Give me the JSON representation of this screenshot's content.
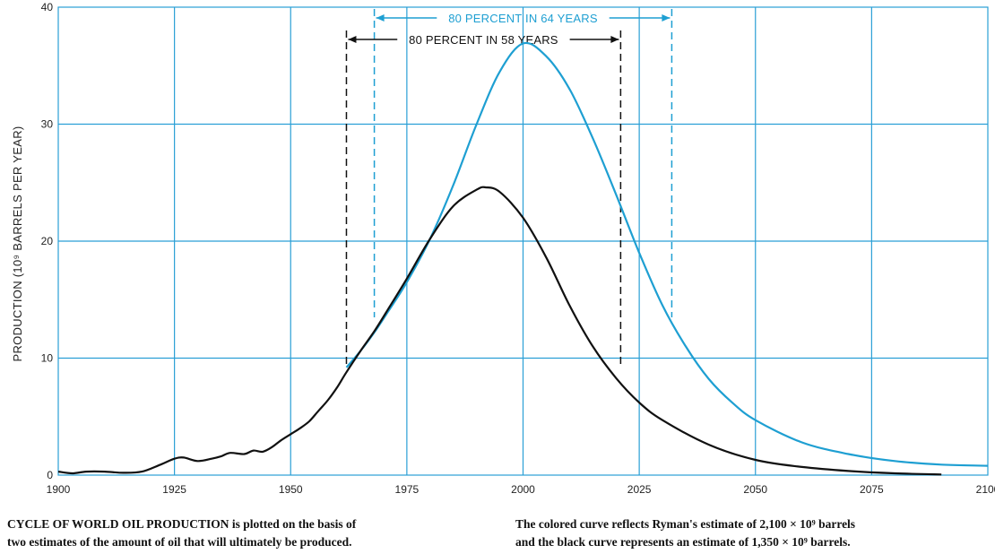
{
  "chart_data": {
    "type": "line",
    "title": "",
    "xlabel": "",
    "ylabel": "PRODUCTION (10⁹ BARRELS PER YEAR)",
    "xlim": [
      1900,
      2100
    ],
    "ylim": [
      0,
      40
    ],
    "x_ticks": [
      "1900",
      "1925",
      "1950",
      "1975",
      "2000",
      "2025",
      "2050",
      "2075",
      "2100"
    ],
    "y_ticks": [
      "0",
      "10",
      "20",
      "30",
      "40"
    ],
    "grid": true,
    "series": [
      {
        "color": "#1e9fd2",
        "x": [
          1962,
          1965,
          1968,
          1971,
          1975,
          1980,
          1985,
          1990,
          1995,
          2000,
          2005,
          2010,
          2015,
          2020,
          2025,
          2030,
          2035,
          2040,
          2045,
          2050,
          2060,
          2070,
          2080,
          2090,
          2100
        ],
        "y": [
          9.2,
          10.6,
          12.2,
          14.0,
          16.5,
          20.2,
          24.8,
          30.0,
          34.5,
          36.9,
          35.8,
          33.0,
          28.8,
          24.0,
          19.0,
          14.5,
          11.0,
          8.2,
          6.2,
          4.7,
          2.8,
          1.8,
          1.2,
          0.9,
          0.8
        ]
      },
      {
        "color": "#111111",
        "x": [
          1900,
          1903,
          1906,
          1910,
          1914,
          1918,
          1922,
          1925,
          1927,
          1930,
          1933,
          1935,
          1937,
          1940,
          1942,
          1944,
          1946,
          1948,
          1950,
          1952,
          1954,
          1956,
          1958,
          1960,
          1962,
          1965,
          1968,
          1971,
          1975,
          1980,
          1985,
          1990,
          1992,
          1995,
          2000,
          2005,
          2010,
          2015,
          2020,
          2025,
          2030,
          2040,
          2050,
          2060,
          2070,
          2080,
          2090
        ],
        "y": [
          0.3,
          0.15,
          0.3,
          0.3,
          0.2,
          0.3,
          0.9,
          1.4,
          1.5,
          1.2,
          1.4,
          1.6,
          1.9,
          1.8,
          2.1,
          2.0,
          2.4,
          3.0,
          3.5,
          4.0,
          4.6,
          5.5,
          6.4,
          7.5,
          8.8,
          10.6,
          12.3,
          14.2,
          16.8,
          20.2,
          23.0,
          24.4,
          24.6,
          24.2,
          22.0,
          18.6,
          14.5,
          11.0,
          8.3,
          6.2,
          4.7,
          2.6,
          1.3,
          0.7,
          0.35,
          0.15,
          0.05
        ]
      }
    ],
    "annotations": [
      {
        "text": "80 PERCENT IN 64 YEARS",
        "x_start": 1968,
        "x_end": 2032,
        "color": "#1e9fd2"
      },
      {
        "text": "80 PERCENT IN 58 YEARS",
        "x_start": 1962,
        "x_end": 2021,
        "color": "#111111"
      }
    ]
  },
  "caption": {
    "left_bold": "CYCLE OF WORLD OIL PRODUCTION",
    "left_rest_line1": " is plotted on the basis of",
    "left_line2": "two estimates of the amount of oil that will ultimately be produced.",
    "right_line1": "The colored curve reflects Ryman's estimate of 2,100 × 10⁹ barrels",
    "right_line2": "and the black curve represents an estimate of 1,350 × 10⁹ barrels."
  }
}
